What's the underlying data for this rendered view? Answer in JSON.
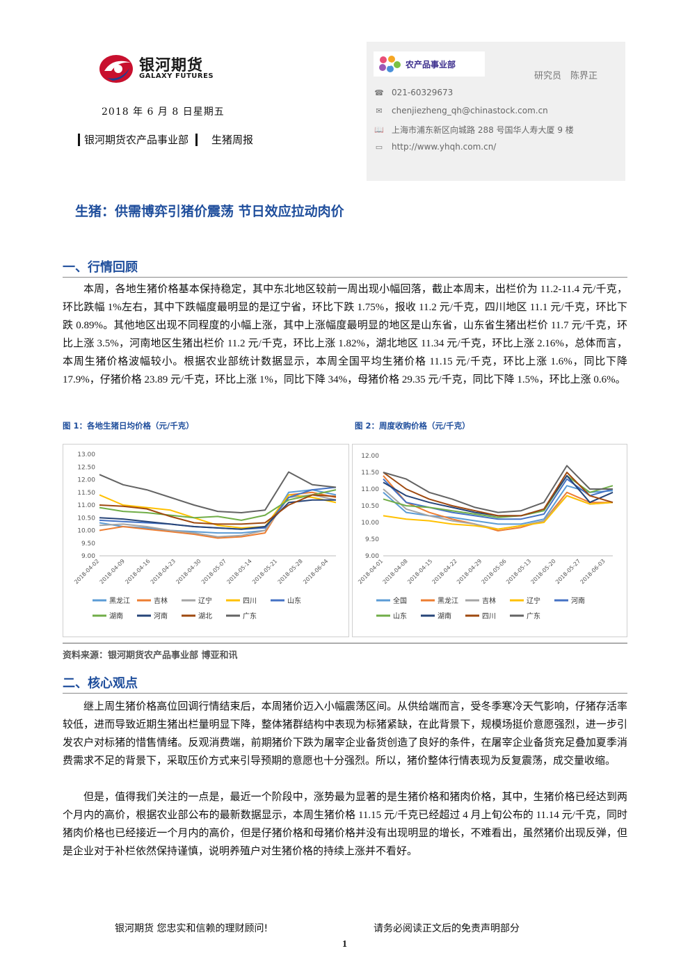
{
  "header": {
    "logo_text": "银河期货",
    "logo_sub": "GALAXY FUTURES",
    "date": "2018 年 6 月 8 日星期五",
    "dept": "银河期货农产品事业部",
    "report_type": "生猪周报"
  },
  "contact": {
    "dept_logo_text": "农产品事业部",
    "researcher": "研究员　陈界正",
    "phone": "021-60329673",
    "email": "chenjiezheng_qh@chinastock.com.cn",
    "address": "上海市浦东新区向城路 288 号国华人寿大厦 9 楼",
    "website": "http://www.yhqh.com.cn/"
  },
  "main_title": "生猪：供需博弈引猪价震荡 节日效应拉动肉价",
  "section1": {
    "title": "一、行情回顾",
    "paragraph": "本周，各地生猪价格基本保持稳定，其中东北地区较前一周出现小幅回落，截止本周末，出栏价为 11.2-11.4 元/千克，环比跌幅 1%左右，其中下跌幅度最明显的是辽宁省，环比下跌 1.75%，报收 11.2 元/千克，四川地区 11.1 元/千克，环比下跌 0.89%。其他地区出现不同程度的小幅上涨，其中上涨幅度最明显的地区是山东省，山东省生猪出栏价 11.7 元/千克，环比上涨 3.5%，河南地区生猪出栏价 11.2 元/千克，环比上涨 1.82%，湖北地区 11.34 元/千克，环比上涨 2.16%，总体而言，本周生猪价格波幅较小。根据农业部统计数据显示，本周全国平均生猪价格 11.15 元/千克，环比上涨 1.6%，同比下降 17.9%，仔猪价格 23.89 元/千克，环比上涨 1%，同比下降 34%，母猪价格 29.35 元/千克，同比下降 1.5%，环比上涨 0.6%。"
  },
  "figures": {
    "fig1_caption": "图 1：各地生猪日均价格（元/千克）",
    "fig2_caption": "图 2：周度收购价格（元/千克）",
    "source": "资料来源：银河期货农产品事业部 博亚和讯"
  },
  "chart_data": [
    {
      "type": "line",
      "title": "",
      "ylim": [
        9.0,
        13.0
      ],
      "yticks": [
        "13.00",
        "12.50",
        "12.00",
        "11.50",
        "11.00",
        "10.50",
        "10.00",
        "9.50",
        "9.00"
      ],
      "xticks": [
        "2018-04-02",
        "2018-04-09",
        "2018-04-16",
        "2018-04-23",
        "2018-04-30",
        "2018-05-07",
        "2018-05-14",
        "2018-05-21",
        "2018-05-28",
        "2018-06-04"
      ],
      "x": [
        "2018-04-02",
        "2018-04-09",
        "2018-04-16",
        "2018-04-23",
        "2018-04-30",
        "2018-05-07",
        "2018-05-14",
        "2018-05-21",
        "2018-05-28",
        "2018-06-04",
        "2018-06-08"
      ],
      "legend": "bottom",
      "series": [
        {
          "name": "黑龙江",
          "color": "#5b9bd5",
          "values": [
            10.3,
            10.15,
            10.1,
            10.0,
            9.95,
            9.9,
            9.9,
            10.0,
            11.5,
            11.6,
            11.4
          ]
        },
        {
          "name": "吉林",
          "color": "#ed7d31",
          "values": [
            10.0,
            10.15,
            10.05,
            9.95,
            9.85,
            9.7,
            9.75,
            9.9,
            11.4,
            11.5,
            11.3
          ]
        },
        {
          "name": "辽宁",
          "color": "#a5a5a5",
          "values": [
            10.2,
            10.25,
            10.15,
            10.0,
            9.9,
            9.75,
            9.8,
            10.0,
            11.3,
            11.4,
            11.2
          ]
        },
        {
          "name": "四川",
          "color": "#ffc000",
          "values": [
            11.4,
            11.0,
            10.9,
            10.8,
            10.5,
            10.2,
            10.1,
            10.15,
            11.4,
            11.3,
            11.1
          ]
        },
        {
          "name": "山东",
          "color": "#4472c4",
          "values": [
            10.4,
            10.35,
            10.3,
            10.25,
            10.15,
            10.1,
            10.05,
            10.1,
            11.3,
            11.6,
            11.7
          ]
        },
        {
          "name": "湖南",
          "color": "#70ad47",
          "values": [
            10.9,
            10.75,
            10.7,
            10.6,
            10.5,
            10.55,
            10.4,
            10.6,
            11.2,
            11.4,
            11.6
          ]
        },
        {
          "name": "河南",
          "color": "#264478",
          "values": [
            10.5,
            10.45,
            10.35,
            10.25,
            10.15,
            10.1,
            10.05,
            10.15,
            11.1,
            11.2,
            11.2
          ]
        },
        {
          "name": "湖北",
          "color": "#9e480e",
          "values": [
            11.0,
            10.95,
            10.85,
            10.55,
            10.3,
            10.25,
            10.25,
            10.3,
            11.0,
            11.4,
            11.34
          ]
        },
        {
          "name": "广东",
          "color": "#636363",
          "values": [
            12.2,
            11.8,
            11.6,
            11.3,
            11.0,
            10.75,
            10.7,
            10.8,
            12.3,
            11.8,
            11.7
          ]
        }
      ]
    },
    {
      "type": "line",
      "title": "",
      "ylim": [
        9.0,
        12.0
      ],
      "yticks": [
        "12.00",
        "11.50",
        "11.00",
        "10.50",
        "10.00",
        "9.50",
        "9.00"
      ],
      "xticks": [
        "2018-04-01",
        "2018-04-08",
        "2018-04-15",
        "2018-04-22",
        "2018-04-29",
        "2018-05-06",
        "2018-05-13",
        "2018-05-20",
        "2018-05-27",
        "2018-06-03"
      ],
      "x": [
        "2018-04-01",
        "2018-04-08",
        "2018-04-15",
        "2018-04-22",
        "2018-04-29",
        "2018-05-06",
        "2018-05-13",
        "2018-05-20",
        "2018-05-27",
        "2018-06-03",
        "2018-06-08"
      ],
      "legend": "bottom",
      "series": [
        {
          "name": "全国",
          "color": "#5b9bd5",
          "values": [
            10.9,
            10.3,
            10.2,
            10.15,
            10.05,
            9.95,
            9.95,
            10.1,
            11.1,
            10.9,
            10.95
          ]
        },
        {
          "name": "黑龙江",
          "color": "#ed7d31",
          "values": [
            11.4,
            10.6,
            10.3,
            10.1,
            9.95,
            9.75,
            9.85,
            10.05,
            10.9,
            10.6,
            10.6
          ]
        },
        {
          "name": "吉林",
          "color": "#a5a5a5",
          "values": [
            11.0,
            10.4,
            10.2,
            10.05,
            9.95,
            9.8,
            9.9,
            10.05,
            10.8,
            10.55,
            10.6
          ]
        },
        {
          "name": "辽宁",
          "color": "#ffc000",
          "values": [
            10.2,
            10.1,
            10.05,
            9.95,
            9.9,
            9.8,
            9.9,
            10.0,
            10.8,
            10.55,
            10.6
          ]
        },
        {
          "name": "河南",
          "color": "#4472c4",
          "values": [
            11.3,
            10.6,
            10.45,
            10.3,
            10.2,
            10.1,
            10.1,
            10.25,
            11.3,
            10.8,
            11.0
          ]
        },
        {
          "name": "山东",
          "color": "#70ad47",
          "values": [
            10.7,
            10.5,
            10.45,
            10.35,
            10.25,
            10.15,
            10.2,
            10.35,
            11.4,
            10.9,
            11.1
          ]
        },
        {
          "name": "湖南",
          "color": "#264478",
          "values": [
            11.2,
            10.8,
            10.6,
            10.45,
            10.3,
            10.2,
            10.2,
            10.4,
            11.4,
            10.6,
            10.9
          ]
        },
        {
          "name": "四川",
          "color": "#9e480e",
          "values": [
            11.5,
            11.0,
            10.7,
            10.5,
            10.35,
            10.2,
            10.2,
            10.4,
            11.5,
            10.8,
            10.6
          ]
        },
        {
          "name": "广东",
          "color": "#636363",
          "values": [
            11.5,
            11.3,
            10.9,
            10.7,
            10.45,
            10.3,
            10.35,
            10.6,
            11.7,
            11.0,
            11.0
          ]
        }
      ]
    }
  ],
  "section2": {
    "title": "二、核心观点",
    "paragraph1": "继上周生猪价格高位回调行情结束后，本周猪价迈入小幅震荡区间。从供给端而言，受冬季寒冷天气影响，仔猪存活率较低，进而导致近期生猪出栏量明显下降，整体猪群结构中表现为标猪紧缺，在此背景下，规模场挺价意愿强烈，进一步引发农户对标猪的惜售情绪。反观消费端，前期猪价下跌为屠宰企业备货创造了良好的条件，在屠宰企业备货充足叠加夏季消费需求不足的背景下，采取压价方式来引导预期的意愿也十分强烈。所以，猪价整体行情表现为反复震荡，成交量收缩。",
    "paragraph2": "但是，值得我们关注的一点是，最近一个阶段中，涨势最为显著的是生猪价格和猪肉价格，其中，生猪价格已经达到两个月内的高价，根据农业部公布的最新数据显示，本周生猪价格 11.15 元/千克已经超过 4 月上旬公布的 11.14 元/千克，同时猪肉价格也已经接近一个月内的高价，但是仔猪价格和母猪价格并没有出现明显的增长，不难看出，虽然猪价出现反弹，但是企业对于补栏依然保持谨慎，说明养殖户对生猪价格的持续上涨并不看好。"
  },
  "footer": {
    "left": "银河期货 您忠实和信赖的理财顾问!",
    "right": "请务必阅读正文后的免责声明部分",
    "page": "1"
  }
}
